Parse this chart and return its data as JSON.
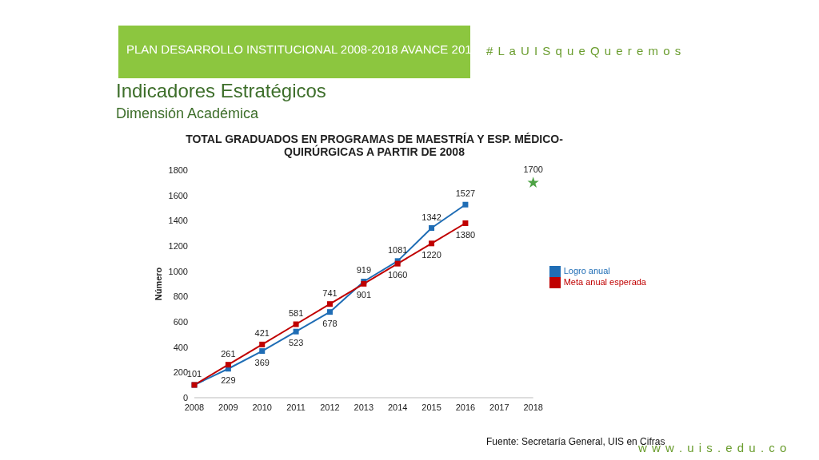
{
  "chart_data": {
    "type": "line",
    "title": "TOTAL GRADUADOS EN PROGRAMAS DE MAESTRÍA Y ESP. MÉDICO-QUIRÚRGICAS A PARTIR DE 2008",
    "ylabel": "Número",
    "annotations": [
      "PLAN DESARROLLO INSTITUCIONAL 2008-2018 AVANCE 201",
      "# L a U I S q u e Q u e r e m o s",
      "Indicadores Estratégicos",
      "Dimensión Académica",
      "Fuente: Secretaría General, UIS en Cifras",
      "w w w . u i s . e d u . c o"
    ],
    "categories": [
      "2008",
      "2009",
      "2010",
      "2011",
      "2012",
      "2013",
      "2014",
      "2015",
      "2016",
      "2017",
      "2018"
    ],
    "series": [
      {
        "name": "Logro anual",
        "color": "#1f6db5",
        "values": [
          101,
          229,
          369,
          523,
          678,
          919,
          1081,
          1342,
          1527,
          null,
          null
        ],
        "value_labels": [
          "101",
          "229",
          "369",
          "523",
          "678",
          "919",
          "1081",
          "1342",
          "1527",
          null,
          null
        ]
      },
      {
        "name": "Meta anual esperada",
        "color": "#c00000",
        "values": [
          101,
          261,
          421,
          581,
          741,
          901,
          1060,
          1220,
          1380,
          null,
          null
        ],
        "value_labels": [
          null,
          "261",
          "421",
          "581",
          "741",
          "901",
          "1060",
          "1220",
          "1380",
          null,
          null
        ]
      },
      {
        "type": "scatter",
        "color": "#4ea345",
        "marker": "star",
        "values": [
          null,
          null,
          null,
          null,
          null,
          null,
          null,
          null,
          null,
          null,
          1700
        ],
        "value_labels": [
          null,
          null,
          null,
          null,
          null,
          null,
          null,
          null,
          null,
          null,
          "1700"
        ]
      }
    ],
    "ylim": [
      0,
      1800
    ],
    "yticks": [
      0,
      200,
      400,
      600,
      800,
      1000,
      1200,
      1400,
      1600,
      1800
    ],
    "legend": "right",
    "marker": "square"
  }
}
